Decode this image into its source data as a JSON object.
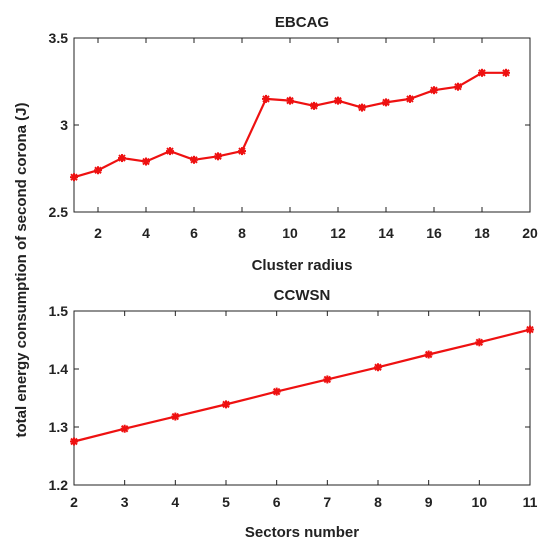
{
  "shared_ylabel": "total energy consumption of second corona (J)",
  "colors": {
    "series": "#ee1111",
    "axis": "#222222",
    "background": "#ffffff"
  },
  "chart_data": [
    {
      "type": "line",
      "title": "EBCAG",
      "xlabel": "Cluster radius",
      "ylabel": "",
      "xlim": [
        1,
        20
      ],
      "ylim": [
        2.5,
        3.5
      ],
      "xticks": [
        2,
        4,
        6,
        8,
        10,
        12,
        14,
        16,
        18,
        20
      ],
      "xtick_labels": [
        "2",
        "4",
        "6",
        "8",
        "10",
        "12",
        "14",
        "16",
        "18",
        "20"
      ],
      "yticks": [
        2.5,
        3,
        3.5
      ],
      "ytick_labels": [
        "2.5",
        "3",
        "3.5"
      ],
      "grid": false,
      "marker": "asterisk",
      "x": [
        1,
        2,
        3,
        4,
        5,
        6,
        7,
        8,
        9,
        10,
        11,
        12,
        13,
        14,
        15,
        16,
        17,
        18,
        19
      ],
      "series": [
        {
          "values": [
            2.7,
            2.74,
            2.81,
            2.79,
            2.85,
            2.8,
            2.82,
            2.85,
            3.15,
            3.14,
            3.11,
            3.14,
            3.1,
            3.13,
            3.15,
            3.2,
            3.22,
            3.3,
            3.3
          ]
        }
      ]
    },
    {
      "type": "line",
      "title": "CCWSN",
      "xlabel": "Sectors number",
      "ylabel": "",
      "xlim": [
        2,
        11
      ],
      "ylim": [
        1.2,
        1.5
      ],
      "xticks": [
        2,
        3,
        4,
        5,
        6,
        7,
        8,
        9,
        10,
        11
      ],
      "xtick_labels": [
        "2",
        "3",
        "4",
        "5",
        "6",
        "7",
        "8",
        "9",
        "10",
        "11"
      ],
      "yticks": [
        1.2,
        1.3,
        1.4,
        1.5
      ],
      "ytick_labels": [
        "1.2",
        "1.3",
        "1.4",
        "1.5"
      ],
      "grid": false,
      "marker": "asterisk",
      "x": [
        2,
        3,
        4,
        5,
        6,
        7,
        8,
        9,
        10,
        11
      ],
      "series": [
        {
          "values": [
            1.275,
            1.297,
            1.318,
            1.339,
            1.361,
            1.382,
            1.403,
            1.425,
            1.446,
            1.468
          ]
        }
      ]
    }
  ]
}
